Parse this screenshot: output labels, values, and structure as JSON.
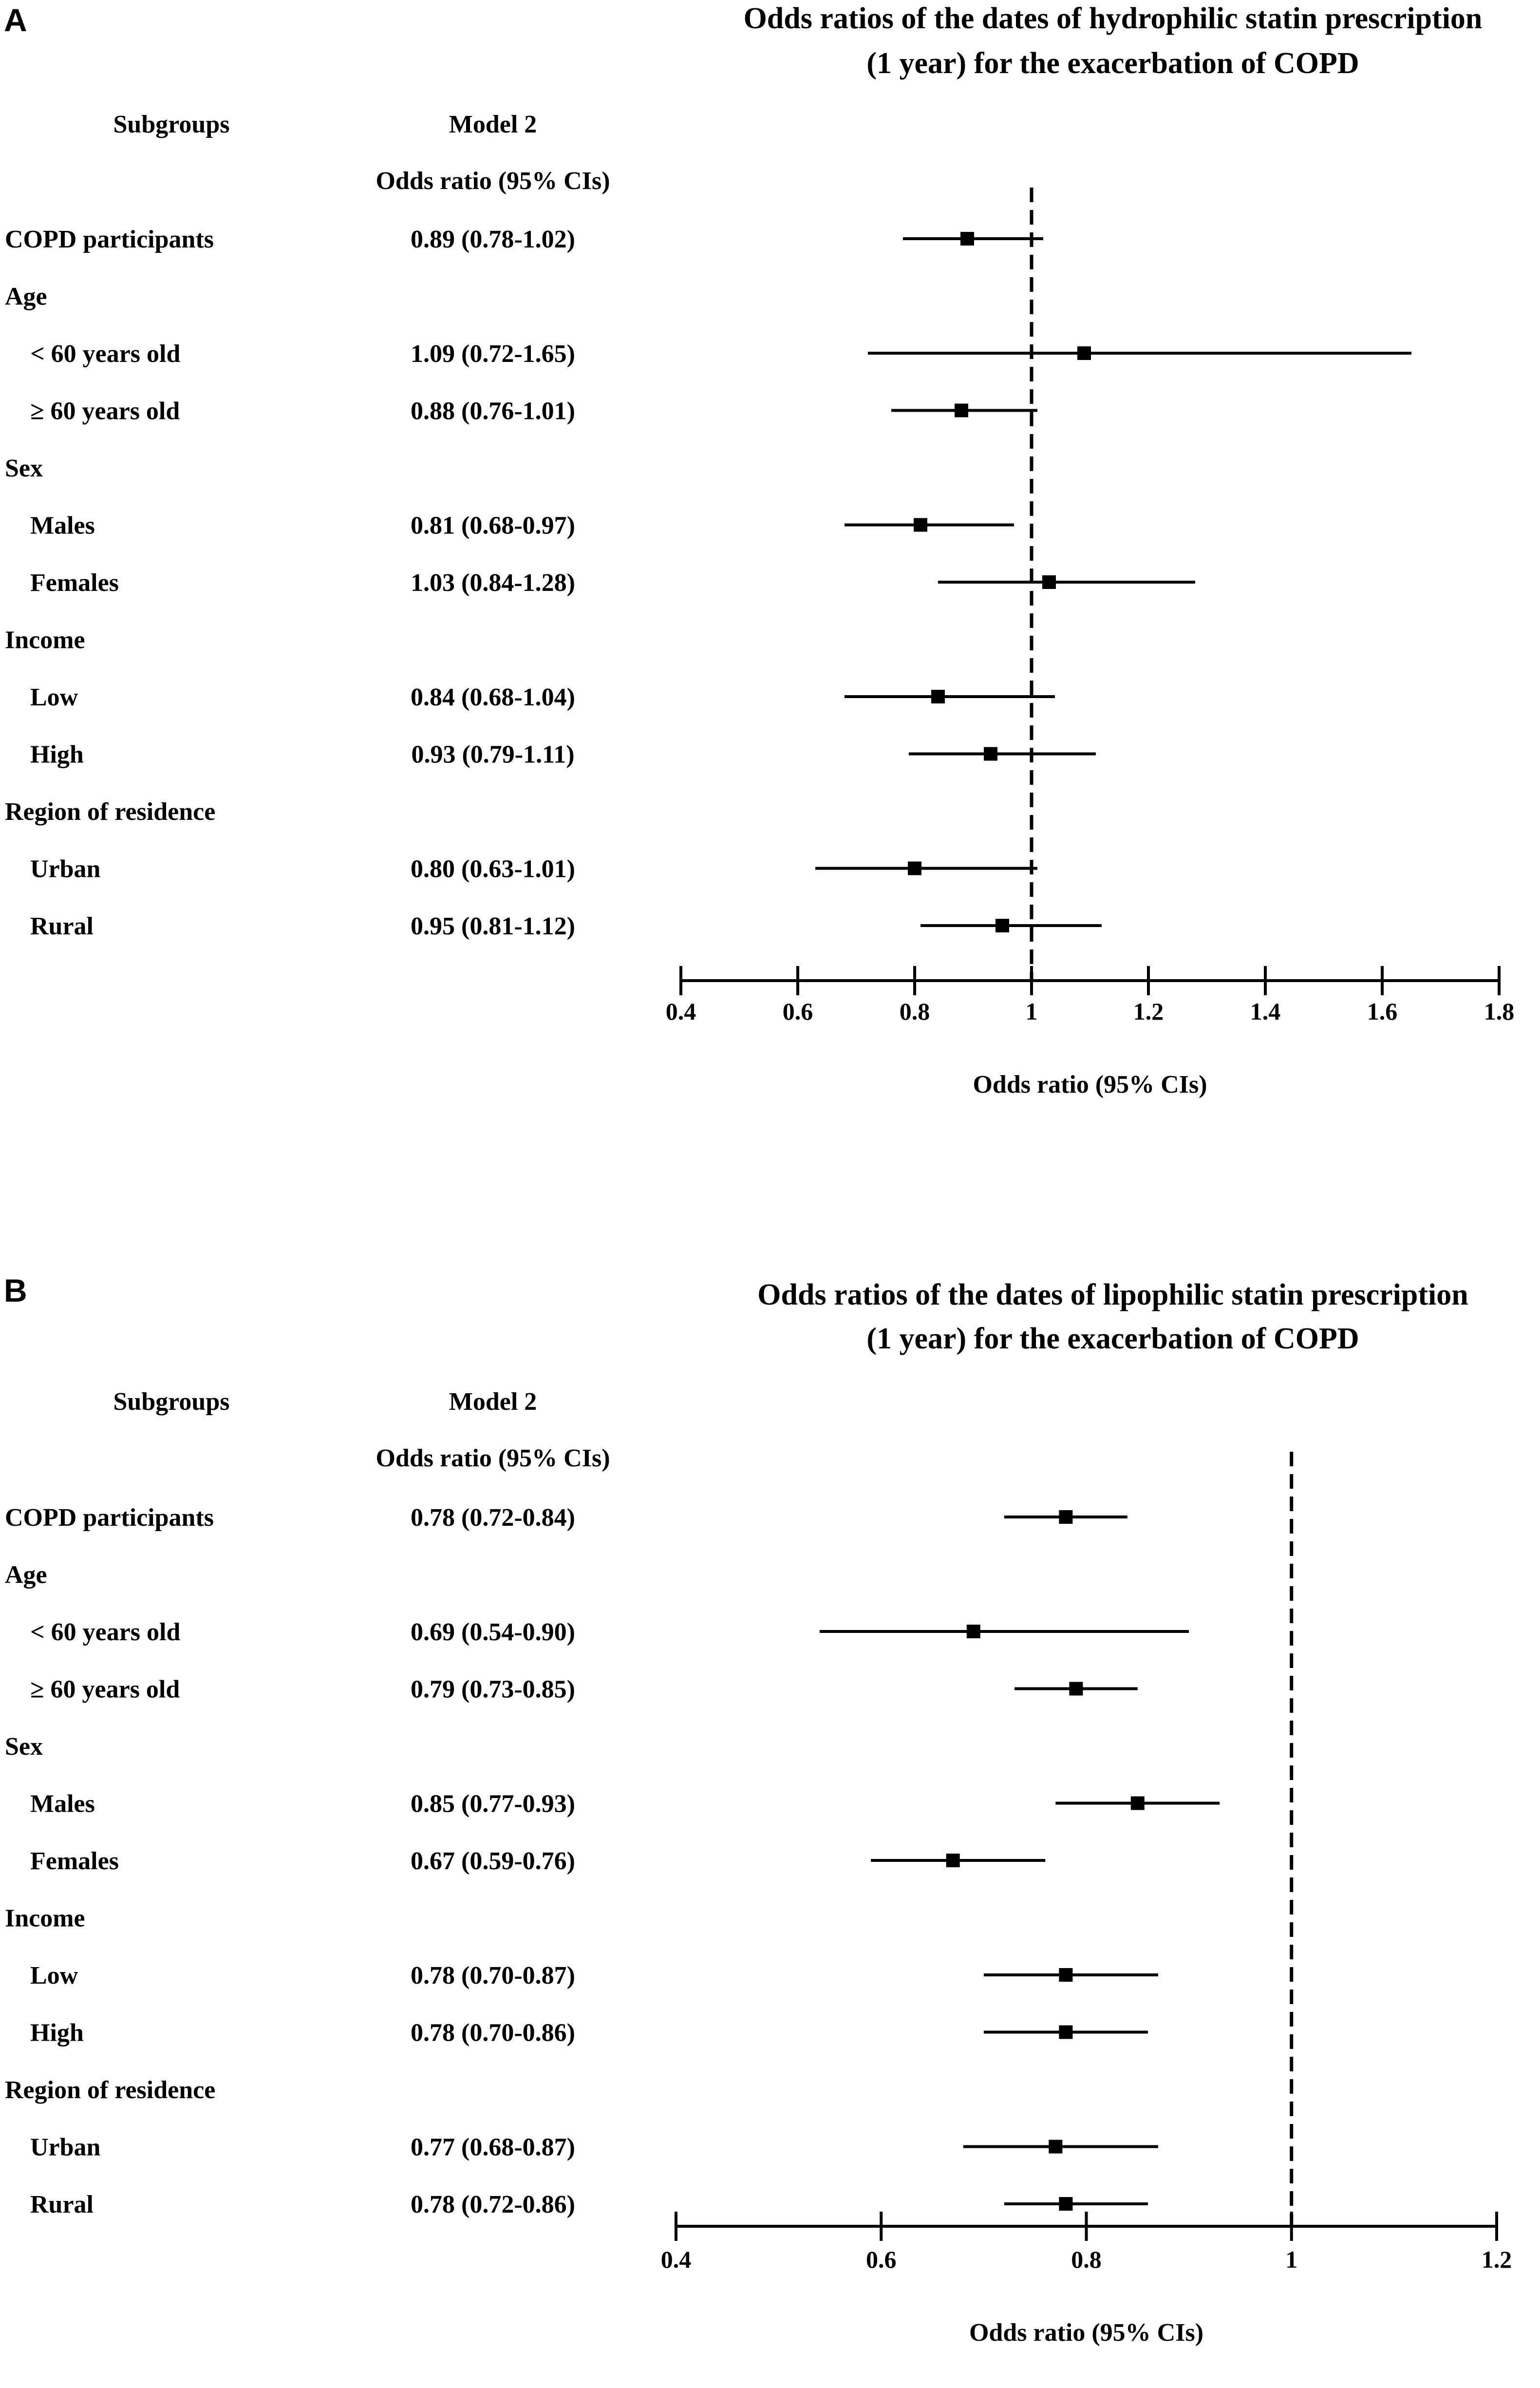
{
  "chart_data": [
    {
      "type": "forest",
      "panel_label": "A",
      "title_line1": "Odds ratios of the dates of hydrophilic statin prescription",
      "title_line2": "(1 year) for the exacerbation of COPD",
      "col_subgroups": "Subgroups",
      "col_model": "Model 2",
      "col_or": "Odds ratio (95% CIs)",
      "xlabel": "Odds ratio (95% CIs)",
      "xlim": [
        0.4,
        1.8
      ],
      "ticks": [
        "0.4",
        "0.6",
        "0.8",
        "1",
        "1.2",
        "1.4",
        "1.6",
        "1.8"
      ],
      "reference_line": 1,
      "rows": [
        {
          "label": "COPD participants",
          "indent": false,
          "text": "0.89 (0.78-1.02)",
          "or": 0.89,
          "lo": 0.78,
          "hi": 1.02
        },
        {
          "label": "Age",
          "indent": false,
          "header": true
        },
        {
          "label": "< 60 years old",
          "indent": true,
          "text": "1.09 (0.72-1.65)",
          "or": 1.09,
          "lo": 0.72,
          "hi": 1.65
        },
        {
          "label": "≥ 60 years old",
          "indent": true,
          "text": "0.88 (0.76-1.01)",
          "or": 0.88,
          "lo": 0.76,
          "hi": 1.01
        },
        {
          "label": "Sex",
          "indent": false,
          "header": true
        },
        {
          "label": "Males",
          "indent": true,
          "text": "0.81 (0.68-0.97)",
          "or": 0.81,
          "lo": 0.68,
          "hi": 0.97
        },
        {
          "label": "Females",
          "indent": true,
          "text": "1.03 (0.84-1.28)",
          "or": 1.03,
          "lo": 0.84,
          "hi": 1.28
        },
        {
          "label": "Income",
          "indent": false,
          "header": true
        },
        {
          "label": "Low",
          "indent": true,
          "text": "0.84 (0.68-1.04)",
          "or": 0.84,
          "lo": 0.68,
          "hi": 1.04
        },
        {
          "label": "High",
          "indent": true,
          "text": "0.93 (0.79-1.11)",
          "or": 0.93,
          "lo": 0.79,
          "hi": 1.11
        },
        {
          "label": "Region of residence",
          "indent": false,
          "header": true
        },
        {
          "label": "Urban",
          "indent": true,
          "text": "0.80 (0.63-1.01)",
          "or": 0.8,
          "lo": 0.63,
          "hi": 1.01
        },
        {
          "label": "Rural",
          "indent": true,
          "text": "0.95 (0.81-1.12)",
          "or": 0.95,
          "lo": 0.81,
          "hi": 1.12
        }
      ]
    },
    {
      "type": "forest",
      "panel_label": "B",
      "title_line1": "Odds ratios of the dates of lipophilic statin prescription",
      "title_line2": "(1 year) for the exacerbation of COPD",
      "col_subgroups": "Subgroups",
      "col_model": "Model 2",
      "col_or": "Odds ratio (95% CIs)",
      "xlabel": "Odds ratio (95% CIs)",
      "xlim": [
        0.4,
        1.2
      ],
      "ticks": [
        "0.4",
        "0.6",
        "0.8",
        "1",
        "1.2"
      ],
      "reference_line": 1,
      "rows": [
        {
          "label": "COPD participants",
          "indent": false,
          "text": "0.78 (0.72-0.84)",
          "or": 0.78,
          "lo": 0.72,
          "hi": 0.84
        },
        {
          "label": "Age",
          "indent": false,
          "header": true
        },
        {
          "label": "< 60 years old",
          "indent": true,
          "text": "0.69 (0.54-0.90)",
          "or": 0.69,
          "lo": 0.54,
          "hi": 0.9
        },
        {
          "label": "≥ 60 years old",
          "indent": true,
          "text": "0.79 (0.73-0.85)",
          "or": 0.79,
          "lo": 0.73,
          "hi": 0.85
        },
        {
          "label": "Sex",
          "indent": false,
          "header": true
        },
        {
          "label": "Males",
          "indent": true,
          "text": "0.85 (0.77-0.93)",
          "or": 0.85,
          "lo": 0.77,
          "hi": 0.93
        },
        {
          "label": "Females",
          "indent": true,
          "text": "0.67 (0.59-0.76)",
          "or": 0.67,
          "lo": 0.59,
          "hi": 0.76
        },
        {
          "label": "Income",
          "indent": false,
          "header": true
        },
        {
          "label": "Low",
          "indent": true,
          "text": "0.78 (0.70-0.87)",
          "or": 0.78,
          "lo": 0.7,
          "hi": 0.87
        },
        {
          "label": "High",
          "indent": true,
          "text": "0.78 (0.70-0.86)",
          "or": 0.78,
          "lo": 0.7,
          "hi": 0.86
        },
        {
          "label": "Region of residence",
          "indent": false,
          "header": true
        },
        {
          "label": "Urban",
          "indent": true,
          "text": "0.77 (0.68-0.87)",
          "or": 0.77,
          "lo": 0.68,
          "hi": 0.87
        },
        {
          "label": "Rural",
          "indent": true,
          "text": "0.78 (0.72-0.86)",
          "or": 0.78,
          "lo": 0.72,
          "hi": 0.86
        }
      ]
    }
  ]
}
